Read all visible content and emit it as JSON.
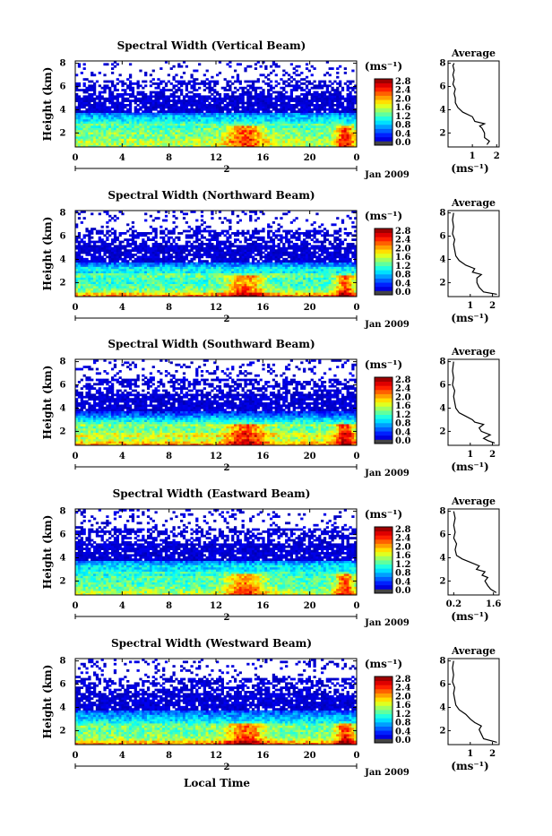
{
  "figure": {
    "x_axis_title": "Local Time",
    "date_label": "Jan 2009"
  },
  "chart_data": [
    {
      "type": "heatmap",
      "title": "Spectral Width (Vertical Beam)",
      "xlabel": "",
      "ylabel": "Height (km)",
      "x_ticks": [
        "0",
        "4",
        "8",
        "12",
        "16",
        "20",
        "0"
      ],
      "day_label": "2",
      "y_ticks": [
        "2",
        "4",
        "6",
        "8"
      ],
      "xlim": [
        0,
        24
      ],
      "ylim": [
        0.8,
        8.2
      ],
      "colorbar": {
        "unit": "(ms⁻¹)",
        "ticks": [
          "0.0",
          "0.4",
          "0.8",
          "1.2",
          "1.6",
          "2.0",
          "2.4",
          "2.8"
        ],
        "range": [
          0.0,
          3.0
        ]
      },
      "profile": {
        "title": "Average",
        "xlabel": "(ms⁻¹)",
        "x_ticks": [
          "1",
          "2"
        ],
        "xlim": [
          0.0,
          2.1
        ],
        "points": [
          [
            1.6,
            1.0
          ],
          [
            1.7,
            1.3
          ],
          [
            1.5,
            1.6
          ],
          [
            1.5,
            2.0
          ],
          [
            1.4,
            2.4
          ],
          [
            1.3,
            2.6
          ],
          [
            1.5,
            2.8
          ],
          [
            1.1,
            3.0
          ],
          [
            1.0,
            3.4
          ],
          [
            0.6,
            3.8
          ],
          [
            0.4,
            4.2
          ],
          [
            0.3,
            4.6
          ],
          [
            0.3,
            5.0
          ],
          [
            0.25,
            5.4
          ],
          [
            0.3,
            5.8
          ],
          [
            0.2,
            6.2
          ],
          [
            0.25,
            6.6
          ],
          [
            0.2,
            7.0
          ],
          [
            0.25,
            7.4
          ],
          [
            0.2,
            7.8
          ],
          [
            0.25,
            8.0
          ]
        ]
      }
    },
    {
      "type": "heatmap",
      "title": "Spectral Width (Northward Beam)",
      "xlabel": "",
      "ylabel": "Height (km)",
      "x_ticks": [
        "0",
        "4",
        "8",
        "12",
        "16",
        "20",
        "0"
      ],
      "day_label": "2",
      "y_ticks": [
        "2",
        "4",
        "6",
        "8"
      ],
      "xlim": [
        0,
        24
      ],
      "ylim": [
        0.8,
        8.2
      ],
      "colorbar": {
        "unit": "(ms⁻¹)",
        "ticks": [
          "0.0",
          "0.4",
          "0.8",
          "1.2",
          "1.6",
          "2.0",
          "2.4",
          "2.8"
        ],
        "range": [
          0.0,
          3.0
        ]
      },
      "profile": {
        "title": "Average",
        "xlabel": "(ms⁻¹)",
        "x_ticks": [
          "1",
          "2"
        ],
        "xlim": [
          0.0,
          2.3
        ],
        "points": [
          [
            2.2,
            1.0
          ],
          [
            1.6,
            1.2
          ],
          [
            1.4,
            1.6
          ],
          [
            1.3,
            2.0
          ],
          [
            1.3,
            2.4
          ],
          [
            1.5,
            2.7
          ],
          [
            1.1,
            2.9
          ],
          [
            1.2,
            3.2
          ],
          [
            0.8,
            3.5
          ],
          [
            0.5,
            3.9
          ],
          [
            0.35,
            4.3
          ],
          [
            0.3,
            4.8
          ],
          [
            0.25,
            5.3
          ],
          [
            0.3,
            5.7
          ],
          [
            0.2,
            6.2
          ],
          [
            0.25,
            6.8
          ],
          [
            0.2,
            7.4
          ],
          [
            0.25,
            8.0
          ]
        ]
      }
    },
    {
      "type": "heatmap",
      "title": "Spectral Width (Southward Beam)",
      "xlabel": "",
      "ylabel": "Height (km)",
      "x_ticks": [
        "0",
        "4",
        "8",
        "12",
        "16",
        "20",
        "0"
      ],
      "day_label": "2",
      "y_ticks": [
        "2",
        "4",
        "6",
        "8"
      ],
      "xlim": [
        0,
        24
      ],
      "ylim": [
        0.8,
        8.2
      ],
      "colorbar": {
        "unit": "(ms⁻¹)",
        "ticks": [
          "0.0",
          "0.4",
          "0.8",
          "1.2",
          "1.6",
          "2.0",
          "2.4",
          "2.8"
        ],
        "range": [
          0.0,
          3.0
        ]
      },
      "profile": {
        "title": "Average",
        "xlabel": "(ms⁻¹)",
        "x_ticks": [
          "1",
          "2"
        ],
        "xlim": [
          0.0,
          2.3
        ],
        "points": [
          [
            2.1,
            1.0
          ],
          [
            1.8,
            1.2
          ],
          [
            1.6,
            1.4
          ],
          [
            1.9,
            1.7
          ],
          [
            1.5,
            2.0
          ],
          [
            1.4,
            2.3
          ],
          [
            1.6,
            2.6
          ],
          [
            1.2,
            2.8
          ],
          [
            1.1,
            3.0
          ],
          [
            0.8,
            3.3
          ],
          [
            0.5,
            3.6
          ],
          [
            0.35,
            4.0
          ],
          [
            0.3,
            4.5
          ],
          [
            0.25,
            5.0
          ],
          [
            0.3,
            5.5
          ],
          [
            0.2,
            6.0
          ],
          [
            0.25,
            6.6
          ],
          [
            0.2,
            7.2
          ],
          [
            0.25,
            8.0
          ]
        ]
      }
    },
    {
      "type": "heatmap",
      "title": "Spectral Width (Eastward Beam)",
      "xlabel": "",
      "ylabel": "Height (km)",
      "x_ticks": [
        "0",
        "4",
        "8",
        "12",
        "16",
        "20",
        "0"
      ],
      "day_label": "2",
      "y_ticks": [
        "2",
        "4",
        "6",
        "8"
      ],
      "xlim": [
        0,
        24
      ],
      "ylim": [
        0.8,
        8.2
      ],
      "colorbar": {
        "unit": "(ms⁻¹)",
        "ticks": [
          "0.0",
          "0.4",
          "0.8",
          "1.2",
          "1.6",
          "2.0",
          "2.4",
          "2.8"
        ],
        "range": [
          0.0,
          3.0
        ]
      },
      "profile": {
        "title": "Average",
        "xlabel": "(ms⁻¹)",
        "x_ticks": [
          "0.2",
          "1.6"
        ],
        "xlim": [
          0.0,
          1.8
        ],
        "points": [
          [
            1.7,
            1.0
          ],
          [
            1.5,
            1.3
          ],
          [
            1.4,
            1.6
          ],
          [
            1.3,
            2.0
          ],
          [
            1.4,
            2.3
          ],
          [
            1.2,
            2.5
          ],
          [
            1.3,
            2.8
          ],
          [
            1.0,
            3.0
          ],
          [
            1.1,
            3.3
          ],
          [
            0.8,
            3.6
          ],
          [
            0.5,
            3.9
          ],
          [
            0.3,
            4.2
          ],
          [
            0.25,
            4.7
          ],
          [
            0.3,
            5.2
          ],
          [
            0.2,
            5.7
          ],
          [
            0.25,
            6.2
          ],
          [
            0.2,
            6.8
          ],
          [
            0.25,
            7.4
          ],
          [
            0.2,
            8.0
          ]
        ]
      }
    },
    {
      "type": "heatmap",
      "title": "Spectral Width (Westward Beam)",
      "xlabel": "",
      "ylabel": "Height (km)",
      "x_ticks": [
        "0",
        "4",
        "8",
        "12",
        "16",
        "20",
        "0"
      ],
      "day_label": "2",
      "y_ticks": [
        "2",
        "4",
        "6",
        "8"
      ],
      "xlim": [
        0,
        24
      ],
      "ylim": [
        0.8,
        8.2
      ],
      "colorbar": {
        "unit": "(ms⁻¹)",
        "ticks": [
          "0.0",
          "0.4",
          "0.8",
          "1.2",
          "1.6",
          "2.0",
          "2.4",
          "2.8"
        ],
        "range": [
          0.0,
          3.0
        ]
      },
      "profile": {
        "title": "Average",
        "xlabel": "(ms⁻¹)",
        "x_ticks": [
          "1",
          "2"
        ],
        "xlim": [
          0.0,
          2.3
        ],
        "points": [
          [
            2.2,
            1.0
          ],
          [
            1.6,
            1.3
          ],
          [
            1.5,
            1.7
          ],
          [
            1.4,
            2.1
          ],
          [
            1.5,
            2.4
          ],
          [
            1.2,
            2.7
          ],
          [
            1.0,
            3.0
          ],
          [
            0.8,
            3.4
          ],
          [
            0.5,
            3.8
          ],
          [
            0.35,
            4.2
          ],
          [
            0.3,
            4.7
          ],
          [
            0.25,
            5.2
          ],
          [
            0.3,
            5.7
          ],
          [
            0.2,
            6.2
          ],
          [
            0.25,
            6.8
          ],
          [
            0.2,
            7.4
          ],
          [
            0.25,
            8.0
          ]
        ]
      }
    }
  ]
}
